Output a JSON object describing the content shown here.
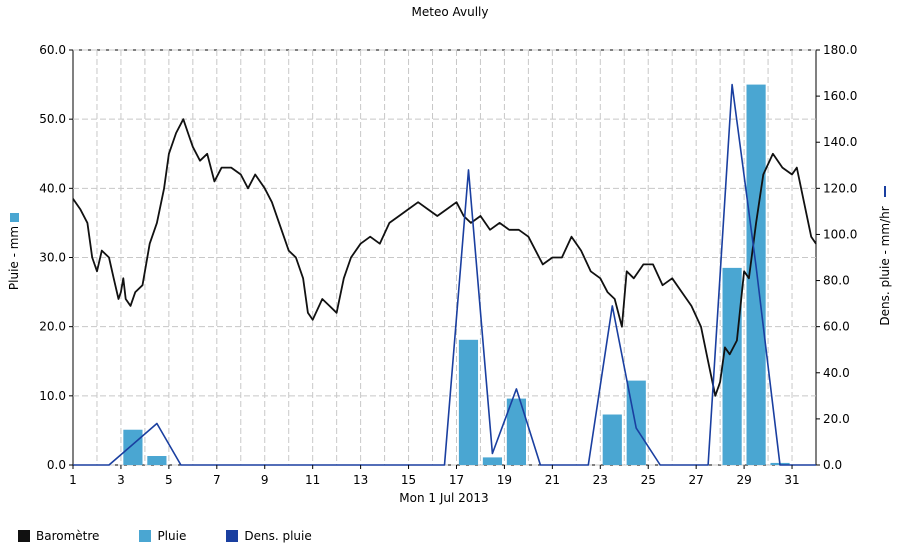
{
  "chart_data": {
    "type": "bar",
    "title": "Meteo  Avully",
    "xlabel": "Mon 1 Jul 2013",
    "ylabel_left": "Pluie - mm",
    "ylabel_right": "Dens. pluie - mm/hr",
    "ylim_left": [
      0,
      60
    ],
    "ylim_right": [
      0,
      180
    ],
    "xlim": [
      1,
      32
    ],
    "x_ticks": [
      "1",
      "3",
      "5",
      "7",
      "9",
      "11",
      "13",
      "15",
      "17",
      "19",
      "21",
      "23",
      "25",
      "27",
      "29",
      "31"
    ],
    "y_ticks_left": [
      "0.0",
      "10.0",
      "20.0",
      "30.0",
      "40.0",
      "50.0",
      "60.0"
    ],
    "y_ticks_right": [
      "0.0",
      "20.0",
      "40.0",
      "60.0",
      "80.0",
      "100.0",
      "120.0",
      "140.0",
      "160.0",
      "180.0"
    ],
    "grid": true,
    "legend_position": "bottom-left",
    "series": [
      {
        "name": "Baromètre",
        "type": "line",
        "color": "#111111",
        "axis": "left",
        "points": [
          [
            1.0,
            38.5
          ],
          [
            1.3,
            37
          ],
          [
            1.6,
            35
          ],
          [
            1.8,
            30
          ],
          [
            2.0,
            28
          ],
          [
            2.2,
            31
          ],
          [
            2.5,
            30
          ],
          [
            2.7,
            27
          ],
          [
            2.9,
            24
          ],
          [
            3.0,
            25
          ],
          [
            3.1,
            27
          ],
          [
            3.2,
            24
          ],
          [
            3.4,
            23
          ],
          [
            3.6,
            25
          ],
          [
            3.9,
            26
          ],
          [
            4.2,
            32
          ],
          [
            4.5,
            35
          ],
          [
            4.8,
            40
          ],
          [
            5.0,
            45
          ],
          [
            5.3,
            48
          ],
          [
            5.6,
            50
          ],
          [
            5.8,
            48
          ],
          [
            6.0,
            46
          ],
          [
            6.3,
            44
          ],
          [
            6.6,
            45
          ],
          [
            6.9,
            41
          ],
          [
            7.2,
            43
          ],
          [
            7.6,
            43
          ],
          [
            8.0,
            42
          ],
          [
            8.3,
            40
          ],
          [
            8.6,
            42
          ],
          [
            9.0,
            40
          ],
          [
            9.3,
            38
          ],
          [
            9.6,
            35
          ],
          [
            10.0,
            31
          ],
          [
            10.3,
            30
          ],
          [
            10.6,
            27
          ],
          [
            10.8,
            22
          ],
          [
            11.0,
            21
          ],
          [
            11.4,
            24
          ],
          [
            11.7,
            23
          ],
          [
            12.0,
            22
          ],
          [
            12.3,
            27
          ],
          [
            12.6,
            30
          ],
          [
            13.0,
            32
          ],
          [
            13.4,
            33
          ],
          [
            13.8,
            32
          ],
          [
            14.2,
            35
          ],
          [
            14.6,
            36
          ],
          [
            15.0,
            37
          ],
          [
            15.4,
            38
          ],
          [
            15.8,
            37
          ],
          [
            16.2,
            36
          ],
          [
            16.6,
            37
          ],
          [
            17.0,
            38
          ],
          [
            17.3,
            36
          ],
          [
            17.6,
            35
          ],
          [
            18.0,
            36
          ],
          [
            18.4,
            34
          ],
          [
            18.8,
            35
          ],
          [
            19.2,
            34
          ],
          [
            19.6,
            34
          ],
          [
            20.0,
            33
          ],
          [
            20.3,
            31
          ],
          [
            20.6,
            29
          ],
          [
            21.0,
            30
          ],
          [
            21.4,
            30
          ],
          [
            21.8,
            33
          ],
          [
            22.2,
            31
          ],
          [
            22.6,
            28
          ],
          [
            23.0,
            27
          ],
          [
            23.3,
            25
          ],
          [
            23.6,
            24
          ],
          [
            23.9,
            20
          ],
          [
            24.1,
            28
          ],
          [
            24.4,
            27
          ],
          [
            24.8,
            29
          ],
          [
            25.2,
            29
          ],
          [
            25.6,
            26
          ],
          [
            26.0,
            27
          ],
          [
            26.4,
            25
          ],
          [
            26.8,
            23
          ],
          [
            27.2,
            20
          ],
          [
            27.5,
            15
          ],
          [
            27.8,
            10
          ],
          [
            28.0,
            12
          ],
          [
            28.2,
            17
          ],
          [
            28.4,
            16
          ],
          [
            28.7,
            18
          ],
          [
            29.0,
            28
          ],
          [
            29.2,
            27
          ],
          [
            29.5,
            35
          ],
          [
            29.8,
            42
          ],
          [
            30.2,
            45
          ],
          [
            30.6,
            43
          ],
          [
            31.0,
            42
          ],
          [
            31.2,
            43
          ],
          [
            31.5,
            38
          ],
          [
            31.8,
            33
          ],
          [
            32.0,
            32
          ]
        ]
      },
      {
        "name": "Pluie",
        "type": "bar",
        "color": "#4aa6d2",
        "axis": "left",
        "x": [
          3.5,
          4.5,
          17.5,
          18.5,
          19.5,
          23.5,
          24.5,
          28.5,
          29.5,
          30.5
        ],
        "values": [
          5.1,
          1.3,
          18.1,
          1.1,
          9.6,
          7.3,
          12.2,
          28.5,
          55.0,
          0.3
        ]
      },
      {
        "name": "Dens. pluie",
        "type": "line",
        "color": "#1a3fa0",
        "axis": "right",
        "points": [
          [
            1,
            0
          ],
          [
            2.5,
            0
          ],
          [
            4.5,
            18
          ],
          [
            5.5,
            0
          ],
          [
            16.5,
            0
          ],
          [
            17.5,
            128
          ],
          [
            18.5,
            5
          ],
          [
            19.5,
            33
          ],
          [
            20.5,
            0
          ],
          [
            22.5,
            0
          ],
          [
            23.5,
            69
          ],
          [
            24.5,
            16
          ],
          [
            25.5,
            0
          ],
          [
            27.5,
            0
          ],
          [
            28.5,
            165
          ],
          [
            29.5,
            86
          ],
          [
            30.5,
            0
          ],
          [
            32,
            0
          ]
        ]
      }
    ]
  },
  "legend": {
    "items": [
      {
        "label": "Baromètre",
        "color": "#111111"
      },
      {
        "label": "Pluie",
        "color": "#4aa6d2"
      },
      {
        "label": "Dens. pluie",
        "color": "#1a3fa0"
      }
    ]
  }
}
